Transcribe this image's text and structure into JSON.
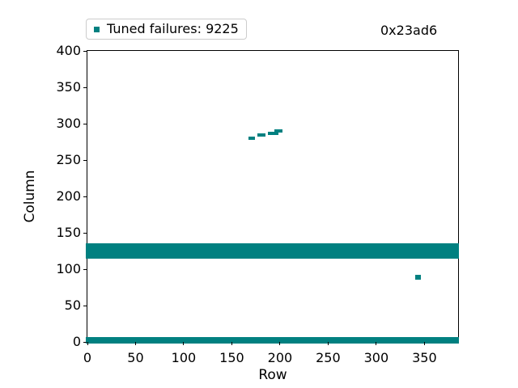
{
  "figure": {
    "background_color": "#ffffff",
    "accent_color": "#008080",
    "annotation_text": "0x23ad6"
  },
  "chart_data": {
    "type": "scatter",
    "title": "0x23ad6",
    "xlabel": "Row",
    "ylabel": "Column",
    "xlim": [
      0,
      385
    ],
    "ylim": [
      0,
      400
    ],
    "xticks": [
      0,
      50,
      100,
      150,
      200,
      250,
      300,
      350
    ],
    "yticks": [
      0,
      50,
      100,
      150,
      200,
      250,
      300,
      350,
      400
    ],
    "grid": false,
    "marker": "square",
    "marker_color": "#008080",
    "marker_size_px": 4,
    "legend": {
      "position": "upper-left-above-axes",
      "entries": [
        {
          "label": "Tuned failures: 9225",
          "marker": "square",
          "color": "#008080"
        }
      ]
    },
    "series": [
      {
        "name": "Tuned failures",
        "failure_count": 9225,
        "regions": [
          {
            "kind": "band",
            "rows": [
              0,
              384
            ],
            "cols": [
              117,
              133
            ]
          },
          {
            "kind": "band",
            "rows": [
              0,
              384
            ],
            "cols": [
              0,
              5
            ]
          },
          {
            "kind": "cluster",
            "rows": [
              169,
              172
            ],
            "cols": [
              280,
              280
            ]
          },
          {
            "kind": "cluster",
            "rows": [
              178,
              183
            ],
            "cols": [
              284,
              284
            ]
          },
          {
            "kind": "cluster",
            "rows": [
              189,
              197
            ],
            "cols": [
              287,
              287
            ]
          },
          {
            "kind": "cluster",
            "rows": [
              196,
              201
            ],
            "cols": [
              290,
              290
            ]
          },
          {
            "kind": "point",
            "rows": [
              342,
              345
            ],
            "cols": [
              88,
              90
            ]
          }
        ]
      }
    ]
  }
}
